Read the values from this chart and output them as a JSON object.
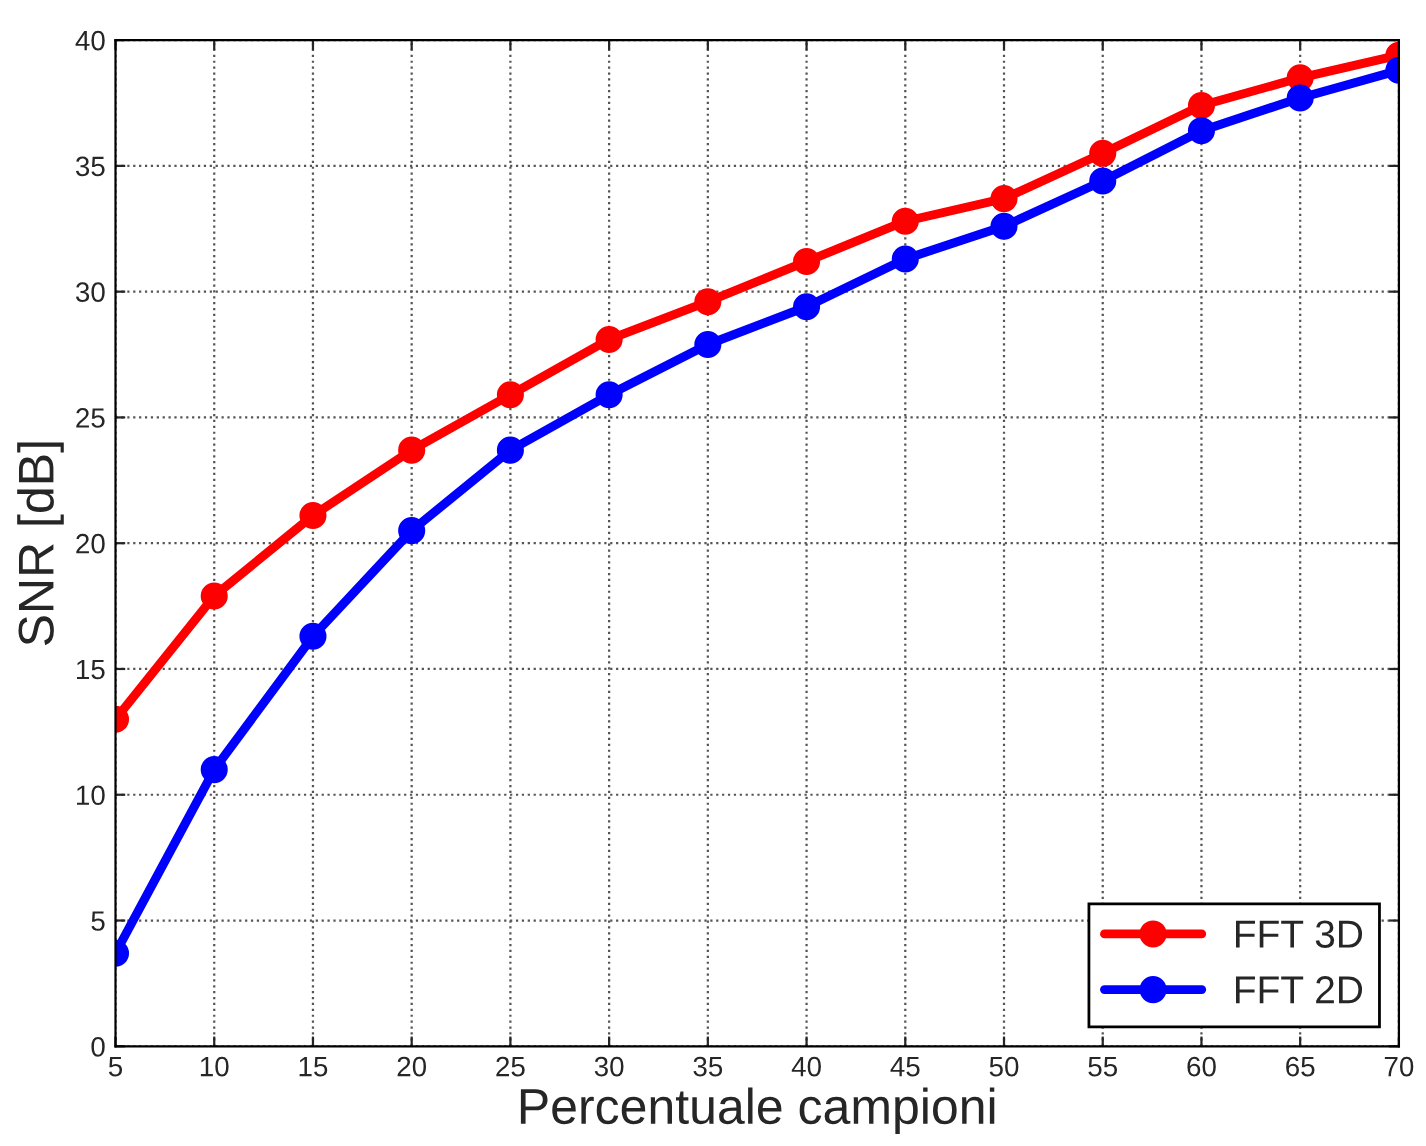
{
  "chart_data": {
    "type": "line",
    "xlabel": "Percentuale campioni",
    "ylabel": "SNR [dB]",
    "x": [
      5,
      10,
      15,
      20,
      25,
      30,
      35,
      40,
      45,
      50,
      55,
      60,
      65,
      70
    ],
    "series": [
      {
        "name": "FFT 3D",
        "color": "#ff0000",
        "values": [
          13.0,
          17.9,
          21.1,
          23.7,
          25.9,
          28.1,
          29.6,
          31.2,
          32.8,
          33.7,
          35.5,
          37.4,
          38.5,
          39.4
        ]
      },
      {
        "name": "FFT 2D",
        "color": "#0000ff",
        "values": [
          3.7,
          11.0,
          16.3,
          20.5,
          23.7,
          25.9,
          27.9,
          29.4,
          31.3,
          32.6,
          34.4,
          36.4,
          37.7,
          38.8
        ]
      }
    ],
    "xlim": [
      5,
      70
    ],
    "xticks": [
      5,
      10,
      15,
      20,
      25,
      30,
      35,
      40,
      45,
      50,
      55,
      60,
      65,
      70
    ],
    "ylim": [
      0,
      40
    ],
    "yticks": [
      0,
      5,
      10,
      15,
      20,
      25,
      30,
      35,
      40
    ],
    "grid": true,
    "legend": "bottom right",
    "marker": "circle",
    "line_style": "solid"
  }
}
